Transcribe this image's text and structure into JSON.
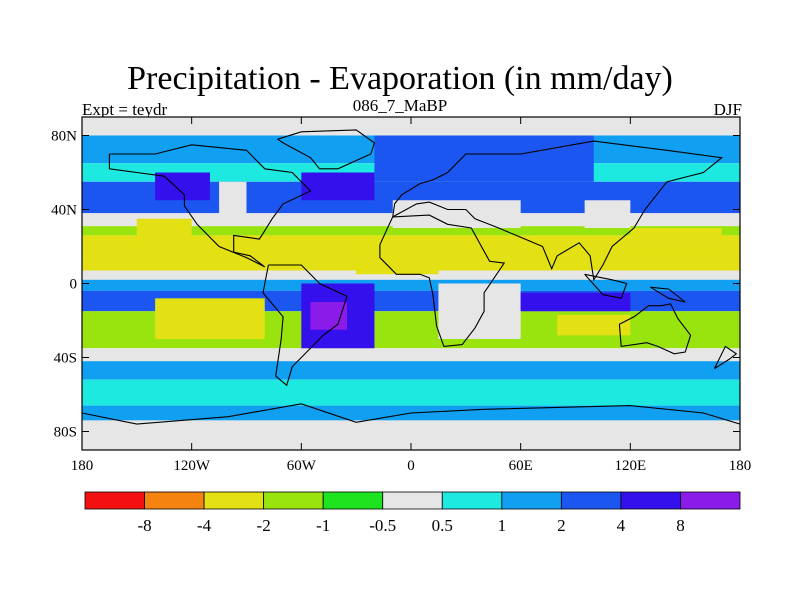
{
  "title": "Precipitation - Evaporation (in mm/day)",
  "left_string": "Expt = teydr",
  "center_string": "086_7_MaBP",
  "right_string": "DJF",
  "x_ticks": [
    {
      "lon": -180,
      "label": "180"
    },
    {
      "lon": -120,
      "label": "120W"
    },
    {
      "lon": -60,
      "label": "60W"
    },
    {
      "lon": 0,
      "label": "0"
    },
    {
      "lon": 60,
      "label": "60E"
    },
    {
      "lon": 120,
      "label": "120E"
    },
    {
      "lon": 180,
      "label": "180"
    }
  ],
  "y_ticks": [
    {
      "lat": 80,
      "label": "80N"
    },
    {
      "lat": 40,
      "label": "40N"
    },
    {
      "lat": 0,
      "label": "0"
    },
    {
      "lat": -40,
      "label": "40S"
    },
    {
      "lat": -80,
      "label": "80S"
    }
  ],
  "colorbar": {
    "colors": [
      "#f41010",
      "#f5830f",
      "#e3e013",
      "#99e40f",
      "#1ee41f",
      "#e6e6e6",
      "#1ee9e1",
      "#109ff1",
      "#1c56f0",
      "#3410ec",
      "#8a1be8"
    ],
    "labels": [
      "-8",
      "-4",
      "-2",
      "-1",
      "-0.5",
      "0.5",
      "1",
      "2",
      "4",
      "8"
    ]
  },
  "chart_data": {
    "type": "heatmap",
    "title": "Precipitation - Evaporation (in mm/day)",
    "xlim": [
      -180,
      180
    ],
    "ylim": [
      -90,
      90
    ],
    "levels": [
      -8,
      -4,
      -2,
      -1,
      -0.5,
      0.5,
      1,
      2,
      4,
      8
    ],
    "zonal_bands": [
      {
        "lat_from": 90,
        "lat_to": 80,
        "value": 0.0
      },
      {
        "lat_from": 80,
        "lat_to": 65,
        "value": 1.5
      },
      {
        "lat_from": 65,
        "lat_to": 55,
        "value": 0.8
      },
      {
        "lat_from": 55,
        "lat_to": 38,
        "value": 3.0
      },
      {
        "lat_from": 38,
        "lat_to": 31,
        "value": 0.0
      },
      {
        "lat_from": 31,
        "lat_to": 26,
        "value": -1.5
      },
      {
        "lat_from": 26,
        "lat_to": 13,
        "value": -3.0
      },
      {
        "lat_from": 13,
        "lat_to": 7,
        "value": -2.5
      },
      {
        "lat_from": 7,
        "lat_to": 2,
        "value": 0.0
      },
      {
        "lat_from": 2,
        "lat_to": -4,
        "value": 1.5
      },
      {
        "lat_from": -4,
        "lat_to": -15,
        "value": 3.0
      },
      {
        "lat_from": -15,
        "lat_to": -35,
        "value": -1.5
      },
      {
        "lat_from": -35,
        "lat_to": -42,
        "value": 0.0
      },
      {
        "lat_from": -42,
        "lat_to": -52,
        "value": 1.5
      },
      {
        "lat_from": -52,
        "lat_to": -66,
        "value": 0.8
      },
      {
        "lat_from": -66,
        "lat_to": -74,
        "value": 1.5
      },
      {
        "lat_from": -74,
        "lat_to": -90,
        "value": 0.0
      }
    ],
    "regions": [
      {
        "lon": [
          -60,
          -20
        ],
        "lat": [
          0,
          -35
        ],
        "value": 6.0
      },
      {
        "lon": [
          -55,
          -35
        ],
        "lat": [
          -10,
          -25
        ],
        "value": 9.0
      },
      {
        "lon": [
          -30,
          15
        ],
        "lat": [
          25,
          5
        ],
        "value": -3.0
      },
      {
        "lon": [
          15,
          60
        ],
        "lat": [
          0,
          -30
        ],
        "value": 0.0
      },
      {
        "lon": [
          60,
          120
        ],
        "lat": [
          -5,
          -15
        ],
        "value": 6.0
      },
      {
        "lon": [
          80,
          120
        ],
        "lat": [
          -17,
          -28
        ],
        "value": -3.0
      },
      {
        "lon": [
          -140,
          -80
        ],
        "lat": [
          -8,
          -30
        ],
        "value": -3.0
      },
      {
        "lon": [
          120,
          170
        ],
        "lat": [
          30,
          15
        ],
        "value": -3.0
      },
      {
        "lon": [
          -150,
          -120
        ],
        "lat": [
          35,
          20
        ],
        "value": -3.0
      },
      {
        "lon": [
          -10,
          60
        ],
        "lat": [
          45,
          30
        ],
        "value": 0.0
      },
      {
        "lon": [
          95,
          120
        ],
        "lat": [
          45,
          30
        ],
        "value": 0.0
      },
      {
        "lon": [
          -140,
          -110
        ],
        "lat": [
          60,
          45
        ],
        "value": 6.0
      },
      {
        "lon": [
          -60,
          -20
        ],
        "lat": [
          60,
          45
        ],
        "value": 6.0
      },
      {
        "lon": [
          -20,
          100
        ],
        "lat": [
          80,
          55
        ],
        "value": 3.0
      },
      {
        "lon": [
          -105,
          -90
        ],
        "lat": [
          55,
          35
        ],
        "value": 0.0
      }
    ]
  }
}
